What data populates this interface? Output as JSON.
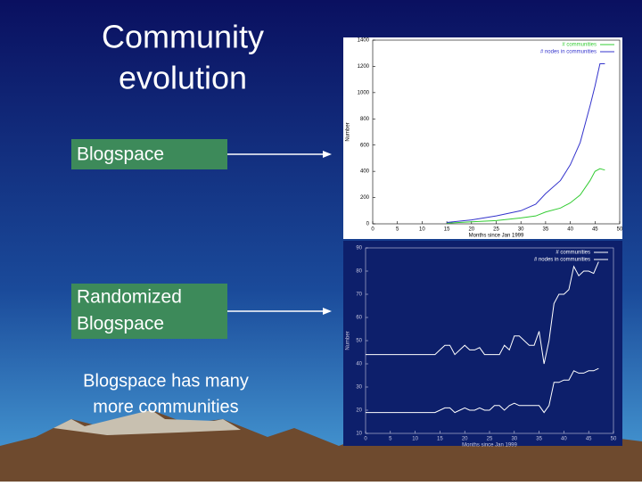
{
  "slide": {
    "title": "Community evolution",
    "boxes": [
      "Blogspace",
      "Randomized Blogspace"
    ],
    "caption": "Blogspace has many more communities"
  },
  "chart_data": [
    {
      "type": "line",
      "background": "#ffffff",
      "axis_color": "#000000",
      "x_label": "Months since Jan 1999",
      "y_label": "Number",
      "xlim": [
        0,
        50
      ],
      "xticks": [
        0,
        5,
        10,
        15,
        20,
        25,
        30,
        35,
        40,
        45,
        50
      ],
      "ylim": [
        0,
        1400
      ],
      "yticks": [
        0,
        200,
        400,
        600,
        800,
        1000,
        1200,
        1400
      ],
      "x": [
        15,
        20,
        25,
        30,
        33,
        35,
        38,
        40,
        42,
        44,
        45,
        46,
        47
      ],
      "series": [
        {
          "name": "# communities",
          "color": "#33cc33",
          "values": [
            5,
            15,
            25,
            45,
            60,
            90,
            120,
            160,
            220,
            330,
            400,
            420,
            410
          ]
        },
        {
          "name": "# nodes in communities",
          "color": "#3333cc",
          "values": [
            10,
            30,
            60,
            100,
            150,
            230,
            330,
            450,
            620,
            900,
            1050,
            1220,
            1220
          ]
        }
      ]
    },
    {
      "type": "line",
      "background": "#0d1f6b",
      "axis_color": "#c8c8e0",
      "x_label": "Months since Jan 1999",
      "y_label": "Number",
      "xlim": [
        0,
        50
      ],
      "xticks": [
        0,
        5,
        10,
        15,
        20,
        25,
        30,
        35,
        40,
        45,
        50
      ],
      "ylim": [
        10,
        90
      ],
      "yticks": [
        10,
        20,
        30,
        40,
        50,
        60,
        70,
        80,
        90
      ],
      "x": [
        0,
        1,
        2,
        3,
        4,
        5,
        6,
        7,
        8,
        9,
        10,
        11,
        12,
        13,
        14,
        15,
        16,
        17,
        18,
        19,
        20,
        21,
        22,
        23,
        24,
        25,
        26,
        27,
        28,
        29,
        30,
        31,
        32,
        33,
        34,
        35,
        36,
        37,
        38,
        39,
        40,
        41,
        42,
        43,
        44,
        45,
        46,
        47
      ],
      "series": [
        {
          "name": "# communities",
          "color": "#ffffff",
          "values": [
            19,
            19,
            19,
            19,
            19,
            19,
            19,
            19,
            19,
            19,
            19,
            19,
            19,
            19,
            19,
            20,
            21,
            21,
            19,
            20,
            21,
            20,
            20,
            21,
            20,
            20,
            22,
            22,
            20,
            22,
            23,
            22,
            22,
            22,
            22,
            22,
            19,
            22,
            32,
            32,
            33,
            33,
            37,
            36,
            36,
            37,
            37,
            38
          ]
        },
        {
          "name": "# nodes in communities",
          "color": "#ffffff",
          "values": [
            44,
            44,
            44,
            44,
            44,
            44,
            44,
            44,
            44,
            44,
            44,
            44,
            44,
            44,
            44,
            46,
            48,
            48,
            44,
            46,
            48,
            46,
            46,
            47,
            44,
            44,
            44,
            44,
            48,
            46,
            52,
            52,
            50,
            48,
            48,
            54,
            40,
            50,
            66,
            70,
            70,
            72,
            82,
            78,
            80,
            80,
            79,
            84
          ]
        }
      ]
    }
  ]
}
